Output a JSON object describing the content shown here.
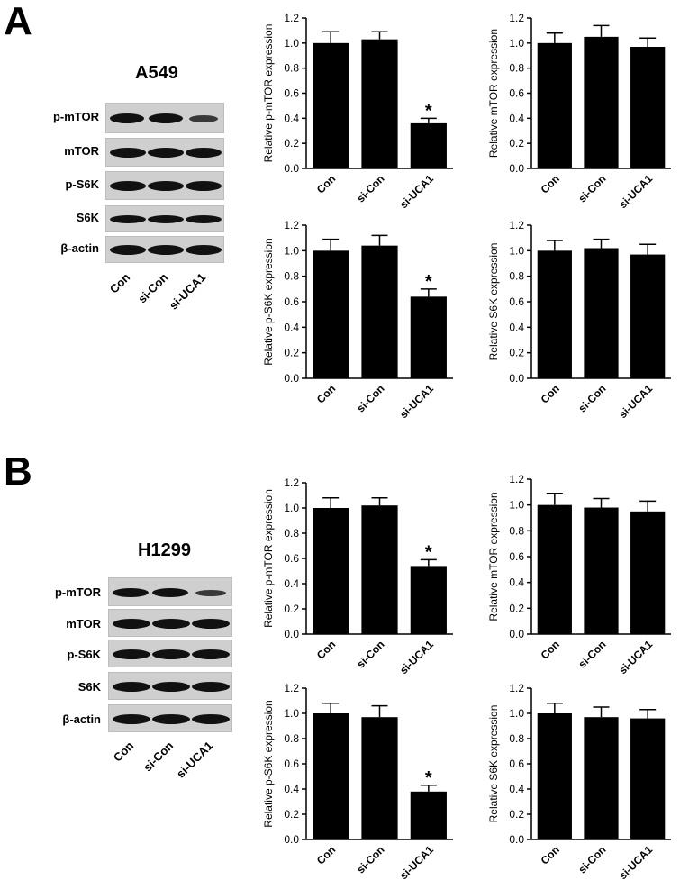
{
  "panels": [
    {
      "letter": "A",
      "cell_line": "A549",
      "blot_labels": [
        "p-mTOR",
        "mTOR",
        "p-S6K",
        "S6K",
        "β-actin"
      ],
      "lane_labels": [
        "Con",
        "si-Con",
        "si-UCA1"
      ]
    },
    {
      "letter": "B",
      "cell_line": "H1299",
      "blot_labels": [
        "p-mTOR",
        "mTOR",
        "p-S6K",
        "S6K",
        "β-actin"
      ],
      "lane_labels": [
        "Con",
        "si-Con",
        "si-UCA1"
      ]
    }
  ],
  "colors": {
    "bar": "#000000",
    "axis": "#000000",
    "band": "#111111",
    "strip": "#cfcfcf"
  },
  "chart_data": [
    {
      "type": "bar",
      "panel": "A",
      "categories": [
        "Con",
        "si-Con",
        "si-UCA1"
      ],
      "values": [
        1.0,
        1.03,
        0.36
      ],
      "errors": [
        0.09,
        0.06,
        0.04
      ],
      "significance": [
        "",
        "",
        "*"
      ],
      "ylabel": "Relative p-mTOR expression",
      "ylim": [
        0,
        1.2
      ],
      "yticks": [
        "0.0",
        "0.2",
        "0.4",
        "0.6",
        "0.8",
        "1.0",
        "1.2"
      ]
    },
    {
      "type": "bar",
      "panel": "A",
      "categories": [
        "Con",
        "si-Con",
        "si-UCA1"
      ],
      "values": [
        1.0,
        1.05,
        0.97
      ],
      "errors": [
        0.08,
        0.09,
        0.07
      ],
      "significance": [
        "",
        "",
        ""
      ],
      "ylabel": "Relative mTOR expression",
      "ylim": [
        0,
        1.2
      ],
      "yticks": [
        "0.0",
        "0.2",
        "0.4",
        "0.6",
        "0.8",
        "1.0",
        "1.2"
      ]
    },
    {
      "type": "bar",
      "panel": "A",
      "categories": [
        "Con",
        "si-Con",
        "si-UCA1"
      ],
      "values": [
        1.0,
        1.04,
        0.64
      ],
      "errors": [
        0.09,
        0.08,
        0.06
      ],
      "significance": [
        "",
        "",
        "*"
      ],
      "ylabel": "Relative p-S6K expression",
      "ylim": [
        0,
        1.2
      ],
      "yticks": [
        "0.0",
        "0.2",
        "0.4",
        "0.6",
        "0.8",
        "1.0",
        "1.2"
      ]
    },
    {
      "type": "bar",
      "panel": "A",
      "categories": [
        "Con",
        "si-Con",
        "si-UCA1"
      ],
      "values": [
        1.0,
        1.02,
        0.97
      ],
      "errors": [
        0.08,
        0.07,
        0.08
      ],
      "significance": [
        "",
        "",
        ""
      ],
      "ylabel": "Relative S6K expression",
      "ylim": [
        0,
        1.2
      ],
      "yticks": [
        "0.0",
        "0.2",
        "0.4",
        "0.6",
        "0.8",
        "1.0",
        "1.2"
      ]
    },
    {
      "type": "bar",
      "panel": "B",
      "categories": [
        "Con",
        "si-Con",
        "si-UCA1"
      ],
      "values": [
        1.0,
        1.02,
        0.54
      ],
      "errors": [
        0.08,
        0.06,
        0.05
      ],
      "significance": [
        "",
        "",
        "*"
      ],
      "ylabel": "Relative p-mTOR expression",
      "ylim": [
        0,
        1.2
      ],
      "yticks": [
        "0.0",
        "0.2",
        "0.4",
        "0.6",
        "0.8",
        "1.0",
        "1.2"
      ]
    },
    {
      "type": "bar",
      "panel": "B",
      "categories": [
        "Con",
        "si-Con",
        "si-UCA1"
      ],
      "values": [
        1.0,
        0.98,
        0.95
      ],
      "errors": [
        0.09,
        0.07,
        0.08
      ],
      "significance": [
        "",
        "",
        ""
      ],
      "ylabel": "Relative mTOR expression",
      "ylim": [
        0,
        1.2
      ],
      "yticks": [
        "0.0",
        "0.2",
        "0.4",
        "0.6",
        "0.8",
        "1.0",
        "1.2"
      ]
    },
    {
      "type": "bar",
      "panel": "B",
      "categories": [
        "Con",
        "si-Con",
        "si-UCA1"
      ],
      "values": [
        1.0,
        0.97,
        0.38
      ],
      "errors": [
        0.08,
        0.09,
        0.05
      ],
      "significance": [
        "",
        "",
        "*"
      ],
      "ylabel": "Relative p-S6K expression",
      "ylim": [
        0,
        1.2
      ],
      "yticks": [
        "0.0",
        "0.2",
        "0.4",
        "0.6",
        "0.8",
        "1.0",
        "1.2"
      ]
    },
    {
      "type": "bar",
      "panel": "B",
      "categories": [
        "Con",
        "si-Con",
        "si-UCA1"
      ],
      "values": [
        1.0,
        0.97,
        0.96
      ],
      "errors": [
        0.08,
        0.08,
        0.07
      ],
      "significance": [
        "",
        "",
        ""
      ],
      "ylabel": "Relative S6K expression",
      "ylim": [
        0,
        1.2
      ],
      "yticks": [
        "0.0",
        "0.2",
        "0.4",
        "0.6",
        "0.8",
        "1.0",
        "1.2"
      ]
    }
  ]
}
